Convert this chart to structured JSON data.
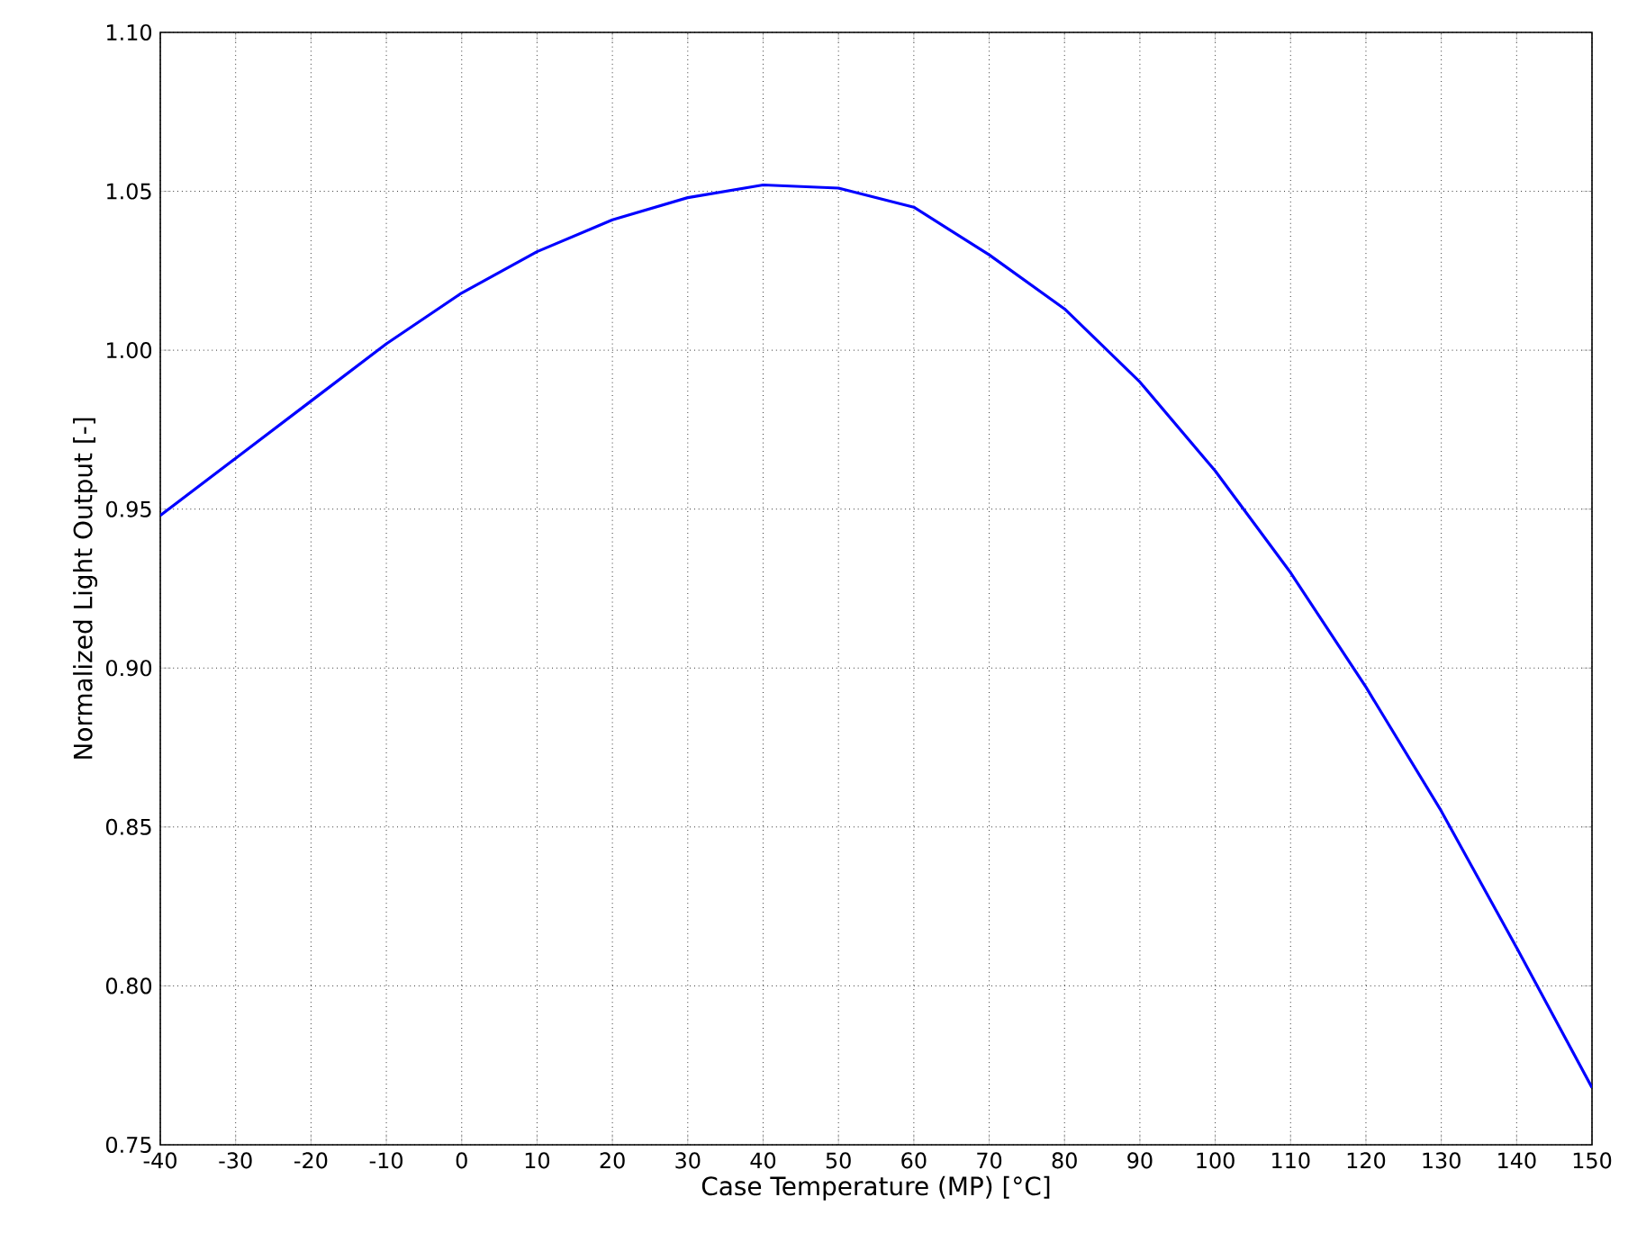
{
  "chart_data": {
    "type": "line",
    "xlabel": "Case Temperature (MP) [°C]",
    "ylabel": "Normalized Light Output [-]",
    "x": [
      -40,
      -30,
      -20,
      -10,
      0,
      10,
      20,
      30,
      40,
      50,
      60,
      70,
      80,
      90,
      100,
      110,
      120,
      130,
      140,
      150
    ],
    "series": [
      {
        "color": "#0000ff",
        "values": [
          0.948,
          0.966,
          0.984,
          1.002,
          1.018,
          1.031,
          1.041,
          1.048,
          1.052,
          1.051,
          1.045,
          1.03,
          1.013,
          0.99,
          0.962,
          0.93,
          0.894,
          0.855,
          0.812,
          0.768
        ]
      }
    ],
    "xlim": [
      -40,
      150
    ],
    "ylim": [
      0.75,
      1.1
    ],
    "xticks": [
      -40,
      -30,
      -20,
      -10,
      0,
      10,
      20,
      30,
      40,
      50,
      60,
      70,
      80,
      90,
      100,
      110,
      120,
      130,
      140,
      150
    ],
    "yticks": [
      {
        "value": 0.75,
        "label": "0.75"
      },
      {
        "value": 0.8,
        "label": "0.80"
      },
      {
        "value": 0.85,
        "label": "0.85"
      },
      {
        "value": 0.9,
        "label": "0.90"
      },
      {
        "value": 0.95,
        "label": "0.95"
      },
      {
        "value": 1.0,
        "label": "1.00"
      },
      {
        "value": 1.05,
        "label": "1.05"
      },
      {
        "value": 1.1,
        "label": "1.10"
      }
    ],
    "grid": true,
    "marker": "none",
    "line_style": "solid"
  }
}
